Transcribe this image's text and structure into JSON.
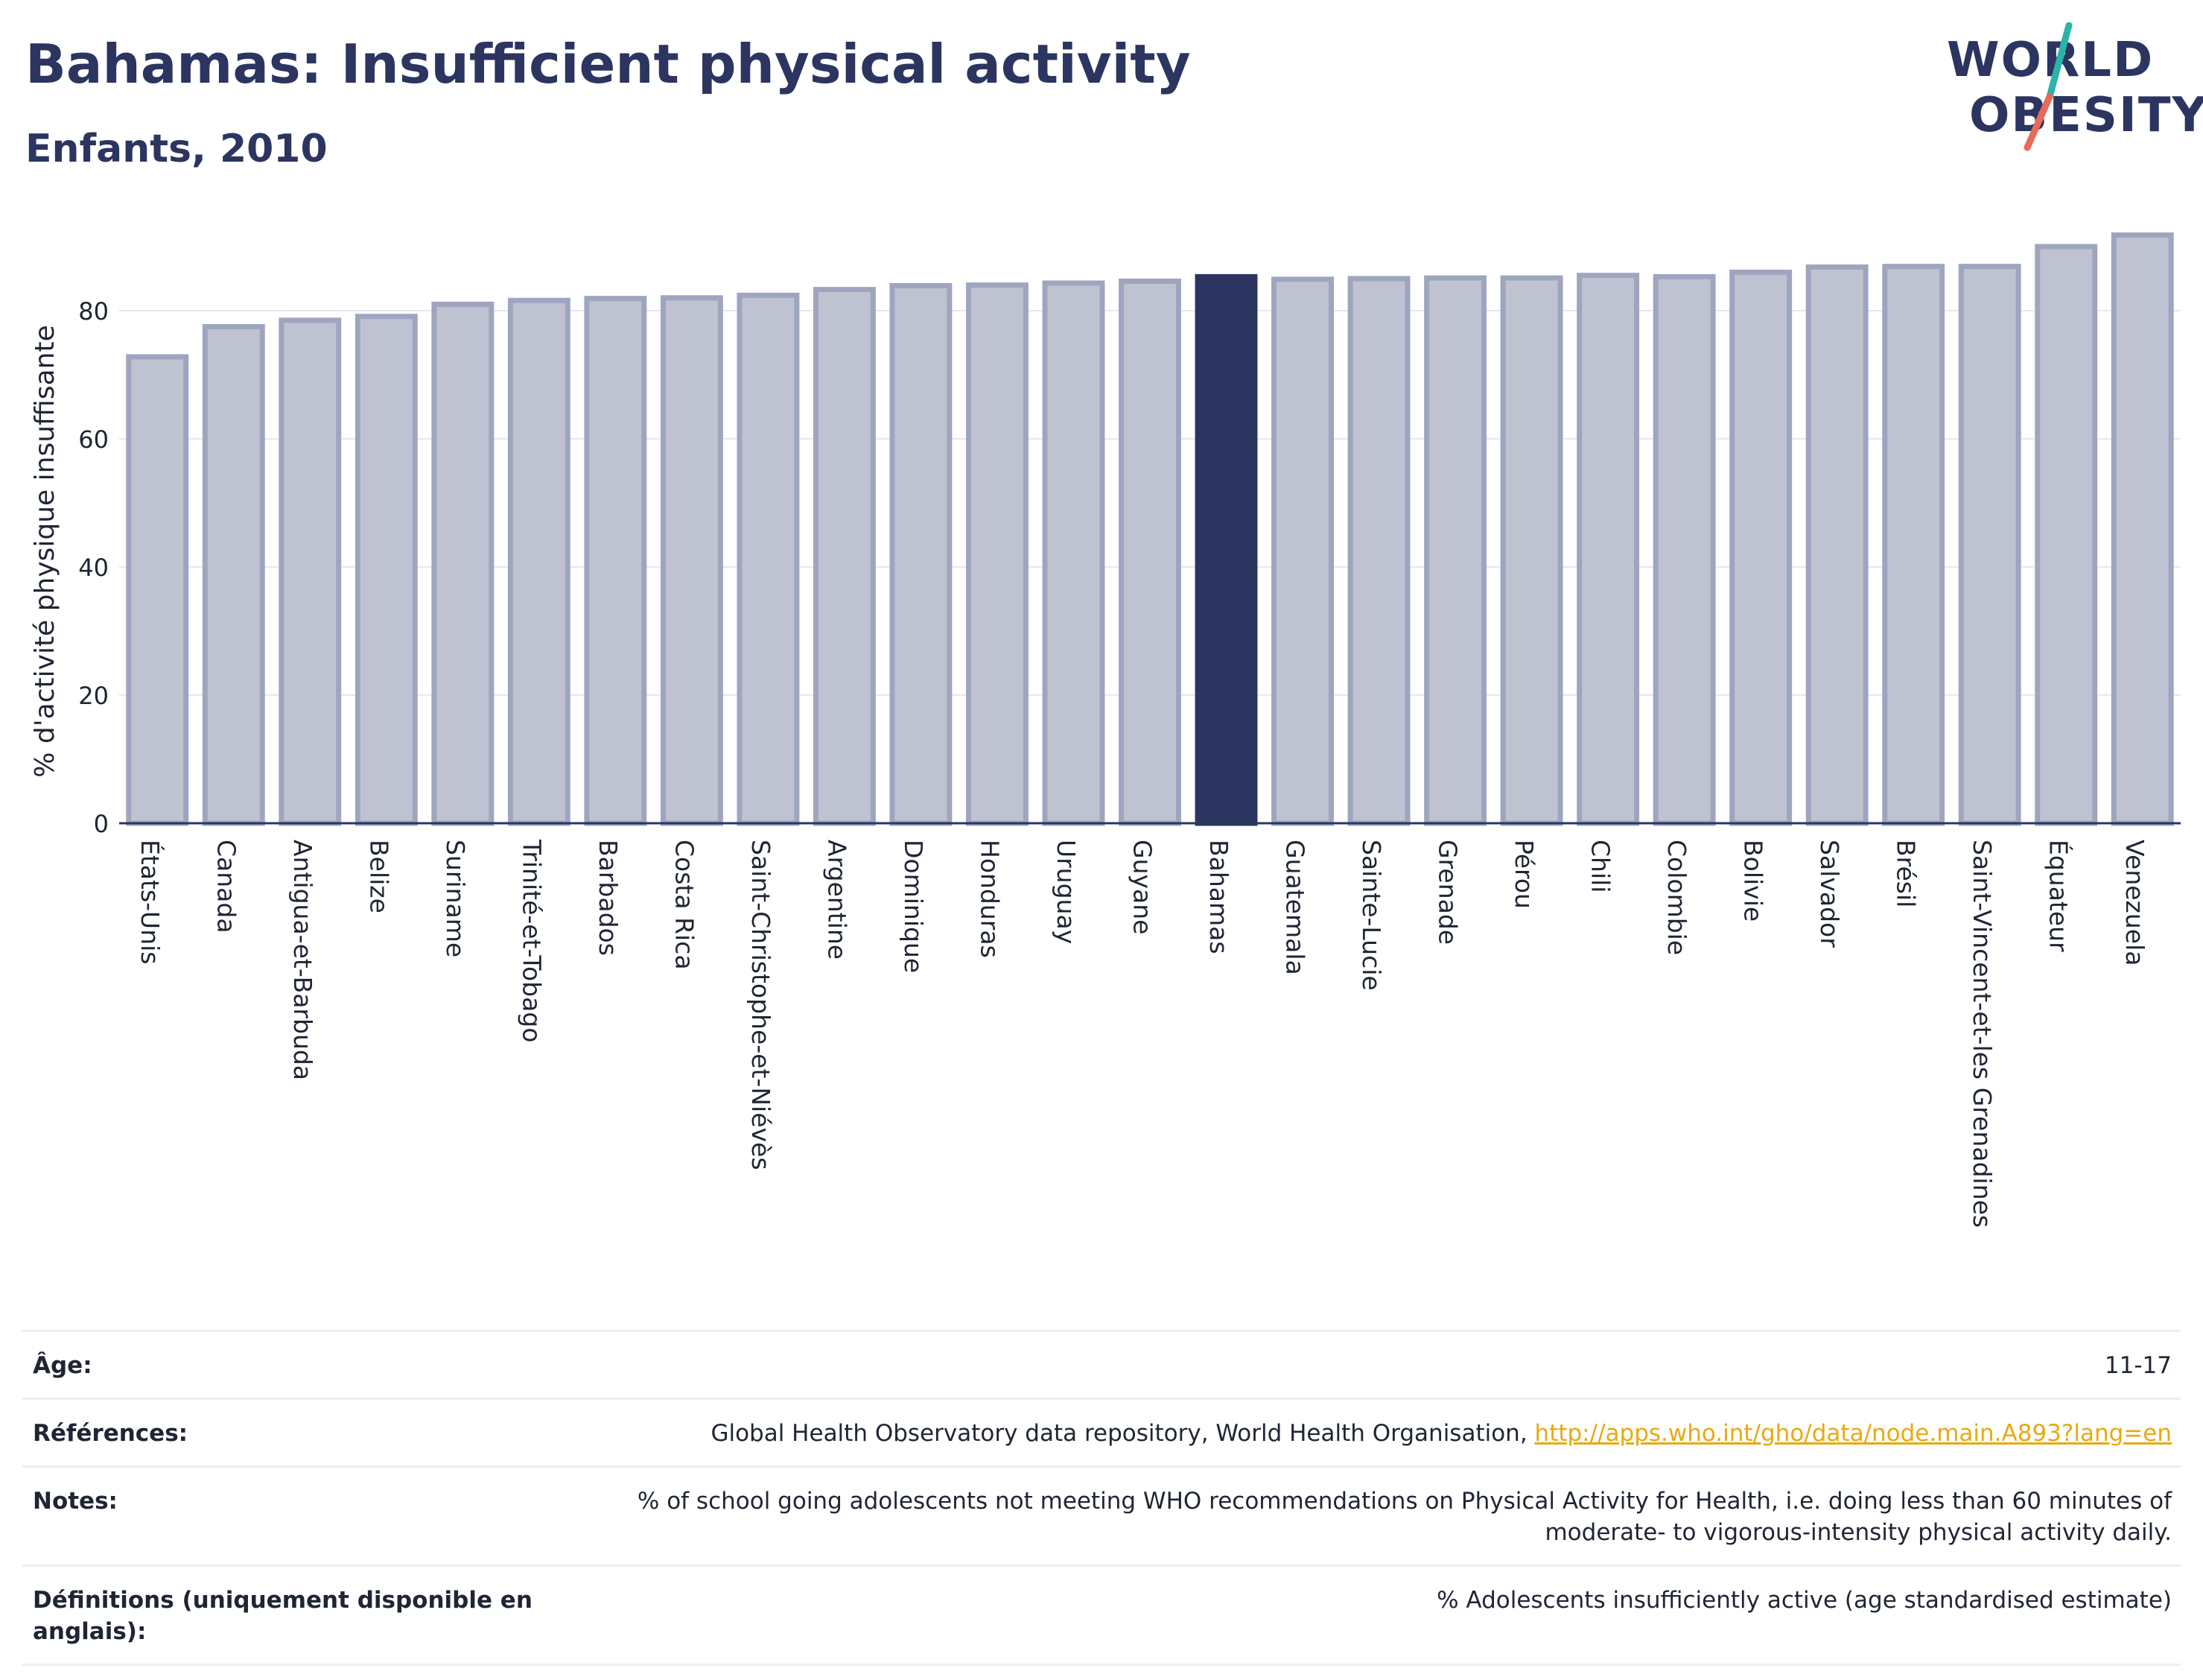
{
  "header": {
    "title": "Bahamas: Insufficient physical activity",
    "subtitle": "Enfants, 2010"
  },
  "logo": {
    "line1": "WORLD",
    "line2": "OBESITY",
    "accent_teal": "#2bb3a8",
    "accent_coral": "#e86a5a"
  },
  "colors": {
    "bar": "#bfc3d1",
    "bar_stroke": "#9ea5bf",
    "highlight": "#2b3560",
    "axis_text": "#1f2533",
    "grid": "#e6e8ee"
  },
  "chart_data": {
    "type": "bar",
    "title": "",
    "xlabel": "",
    "ylabel": "% d'activité physique insuffisante",
    "ylim": [
      0,
      92
    ],
    "yticks": [
      0,
      20,
      40,
      60,
      80
    ],
    "grid": true,
    "highlight_category": "Bahamas",
    "categories": [
      "États-Unis",
      "Canada",
      "Antigua-et-Barbuda",
      "Belize",
      "Suriname",
      "Trinité-et-Tobago",
      "Barbados",
      "Costa Rica",
      "Saint-Christophe-et-Niévès",
      "Argentine",
      "Dominique",
      "Honduras",
      "Uruguay",
      "Guyane",
      "Bahamas",
      "Guatemala",
      "Sainte-Lucie",
      "Grenade",
      "Pérou",
      "Chili",
      "Colombie",
      "Bolivie",
      "Salvador",
      "Brésil",
      "Saint-Vincent-et-les Grenadines",
      "Équateur",
      "Venezuela"
    ],
    "values": [
      72.8,
      77.5,
      78.5,
      79.1,
      81.0,
      81.6,
      81.9,
      82.0,
      82.4,
      83.3,
      83.9,
      84.0,
      84.3,
      84.6,
      85.3,
      84.9,
      85.0,
      85.1,
      85.1,
      85.5,
      85.3,
      86.0,
      86.8,
      86.9,
      86.9,
      90.0,
      91.8
    ]
  },
  "meta": {
    "rows": [
      {
        "label": "Âge:",
        "value": "11-17"
      },
      {
        "label": "Références:",
        "value": "Global Health Observatory data repository, World Health Organisation, ",
        "link": "http://apps.who.int/gho/data/node.main.A893?lang=en"
      },
      {
        "label": "Notes:",
        "value": "% of school going adolescents not meeting WHO recommendations on Physical Activity for Health, i.e. doing less than 60 minutes of moderate- to vigorous-intensity physical activity daily."
      },
      {
        "label": "Définitions (uniquement disponible en anglais):",
        "value": "% Adolescents insufficiently active (age standardised estimate)"
      }
    ]
  }
}
